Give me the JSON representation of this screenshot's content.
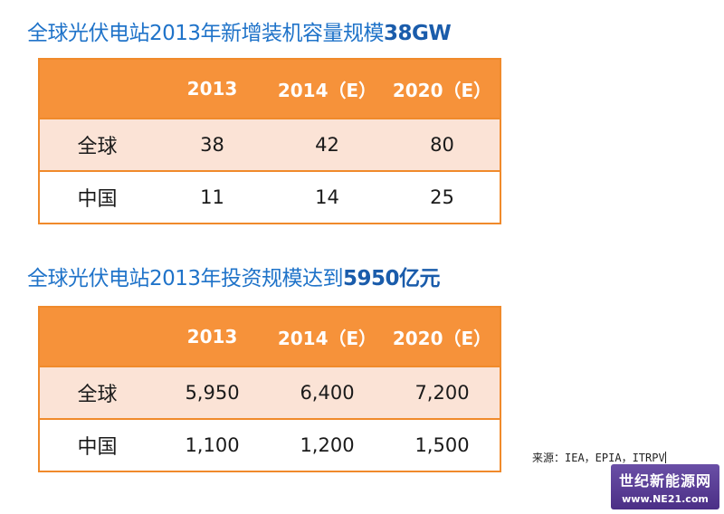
{
  "section1": {
    "title_main": "全球光伏电站2013年新增装机容量规模",
    "title_emph": "38GW",
    "table": {
      "headers": [
        "",
        "2013",
        "2014（E）",
        "2020（E）"
      ],
      "rows": [
        {
          "label": "全球",
          "values": [
            "38",
            "42",
            "80"
          ]
        },
        {
          "label": "中国",
          "values": [
            "11",
            "14",
            "25"
          ]
        }
      ]
    }
  },
  "section2": {
    "title_main": "全球光伏电站2013年投资规模达到",
    "title_emph": "5950亿元",
    "table": {
      "headers": [
        "",
        "2013",
        "2014（E）",
        "2020（E）"
      ],
      "rows": [
        {
          "label": "全球",
          "values": [
            "5,950",
            "6,400",
            "7,200"
          ]
        },
        {
          "label": "中国",
          "values": [
            "1,100",
            "1,200",
            "1,500"
          ]
        }
      ]
    }
  },
  "source": "来源：IEA，EPIA，ITRPV",
  "watermark": {
    "name": "世纪新能源网",
    "url": "www.NE21.com"
  },
  "colors": {
    "title": "#1f73c9",
    "header_bg": "#f6923a",
    "row1_bg": "#fbe3d6",
    "border": "#f08a2b",
    "watermark_bg": "#5a3f96"
  }
}
